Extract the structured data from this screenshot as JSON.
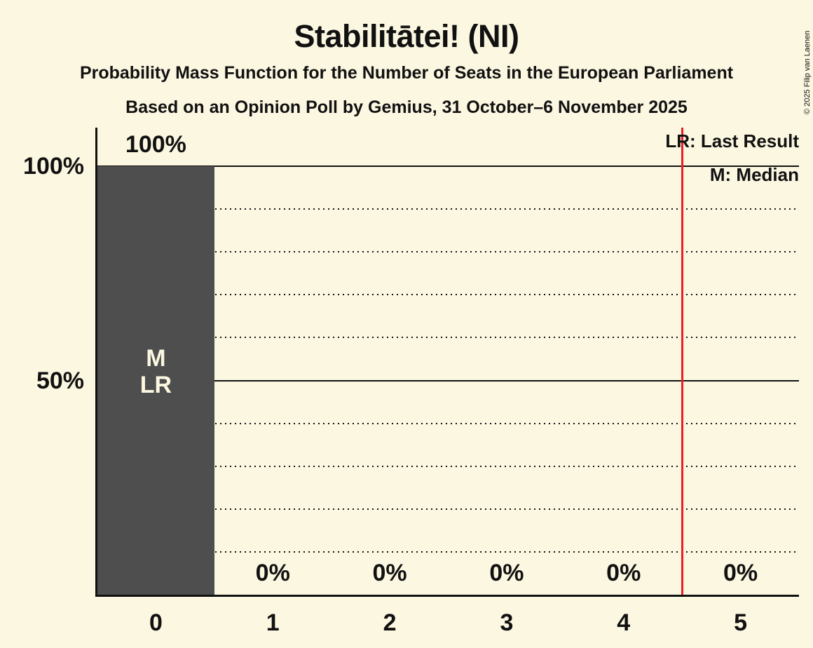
{
  "title": "Stabilitātei! (NI)",
  "subtitle": "Probability Mass Function for the Number of Seats in the European Parliament",
  "poll_line": "Based on an Opinion Poll by Gemius, 31 October–6 November 2025",
  "copyright": "© 2025 Filip van Laenen",
  "legend": {
    "last_result": "LR: Last Result",
    "median": "M: Median"
  },
  "colors": {
    "background": "#FCF7E1",
    "text": "#111111",
    "axis": "#111111",
    "bar": "#4E4E4E",
    "bar_label": "#FCF7E1",
    "red_line": "#EE1D24"
  },
  "chart_data": {
    "type": "bar",
    "title": "Stabilitātei! (NI)",
    "categories": [
      "0",
      "1",
      "2",
      "3",
      "4",
      "5"
    ],
    "values": [
      100,
      0,
      0,
      0,
      0,
      0
    ],
    "value_labels": [
      "100%",
      "0%",
      "0%",
      "0%",
      "0%",
      "0%"
    ],
    "ylim": [
      0,
      100
    ],
    "y_axis_labels": [
      {
        "pct": 100,
        "label": "100%"
      },
      {
        "pct": 50,
        "label": "50%"
      }
    ],
    "solid_gridlines_pct": [
      100,
      50
    ],
    "dotted_gridlines_pct": [
      90,
      80,
      70,
      60,
      40,
      30,
      20,
      10
    ],
    "bar_annotations": [
      {
        "category": "0",
        "lines": [
          "M",
          "LR"
        ]
      }
    ],
    "median_category": "0",
    "last_result_category": "0",
    "red_line_x": 4.5,
    "legend_entries": [
      "LR: Last Result",
      "M: Median"
    ],
    "legend_position": "top-right",
    "grid": "horizontal; dotted every 10%, solid at 50% and 100%"
  }
}
